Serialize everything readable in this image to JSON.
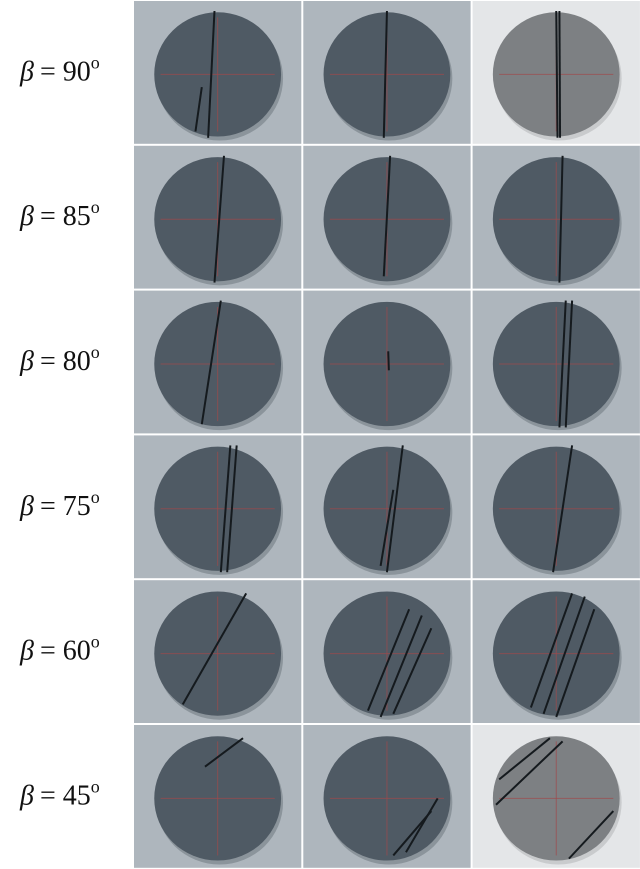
{
  "rows": [
    {
      "symbol": "β",
      "text": "= 90",
      "degree": "o"
    },
    {
      "symbol": "β",
      "text": "= 85",
      "degree": "o"
    },
    {
      "symbol": "β",
      "text": "= 80",
      "degree": "o"
    },
    {
      "symbol": "β",
      "text": "= 75",
      "degree": "o"
    },
    {
      "symbol": "β",
      "text": "= 60",
      "degree": "o"
    },
    {
      "symbol": "β",
      "text": "= 45",
      "degree": "o"
    }
  ]
}
